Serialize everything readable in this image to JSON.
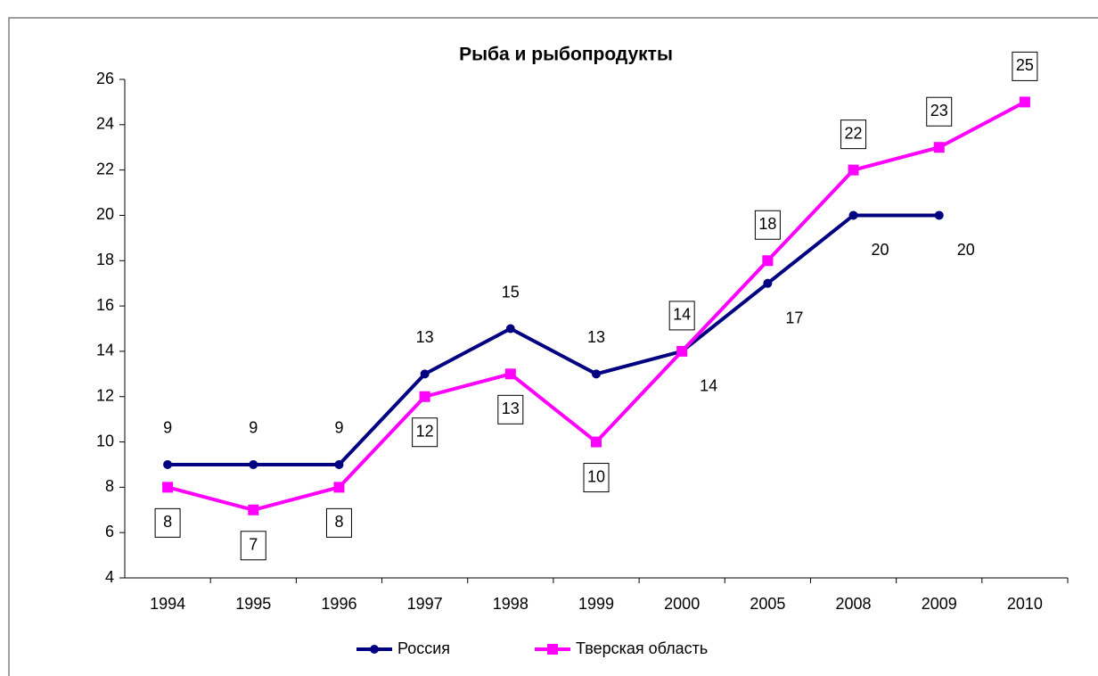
{
  "chart_data": {
    "type": "line",
    "title": "Рыба  и  рыбопродукты",
    "categories": [
      "1994",
      "1995",
      "1996",
      "1997",
      "1998",
      "1999",
      "2000",
      "2005",
      "2008",
      "2009",
      "2010"
    ],
    "series": [
      {
        "name": "Россия",
        "color": "#000080",
        "marker": "circle",
        "values": [
          9,
          9,
          9,
          13,
          15,
          13,
          14,
          17,
          20,
          20,
          null
        ]
      },
      {
        "name": "Тверская область",
        "color": "#ff00ff",
        "marker": "square",
        "values": [
          8,
          7,
          8,
          12,
          13,
          10,
          14,
          18,
          22,
          23,
          25
        ]
      }
    ],
    "ylim": [
      4,
      26
    ],
    "yticks": [
      4,
      6,
      8,
      10,
      12,
      14,
      16,
      18,
      20,
      22,
      24,
      26
    ],
    "legend": "bottom"
  }
}
